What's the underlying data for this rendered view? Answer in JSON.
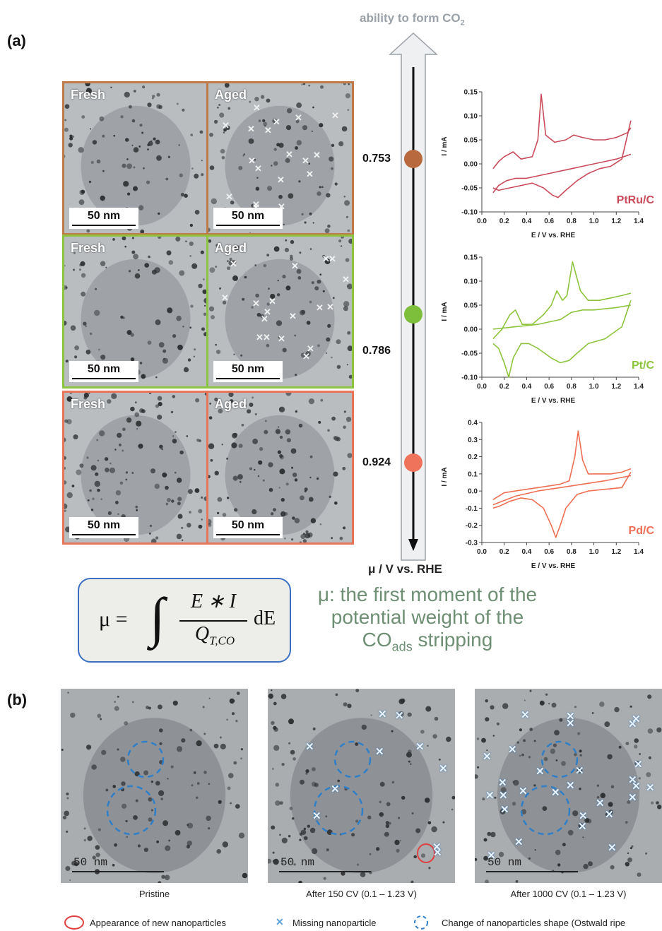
{
  "panel_a": {
    "label": "(a)",
    "rows": [
      {
        "fresh_label": "Fresh",
        "aged_label": "Aged",
        "scale": "50 nm",
        "color": "#c07a4a"
      },
      {
        "fresh_label": "Fresh",
        "aged_label": "Aged",
        "scale": "50 nm",
        "color": "#8dc43f"
      },
      {
        "fresh_label": "Fresh",
        "aged_label": "Aged",
        "scale": "50 nm",
        "color": "#e8745a"
      }
    ],
    "arrow_title": "ability to form CO",
    "arrow_title_sub": "2",
    "arrow_axis_label": "μ / V vs. RHE",
    "mu_values": [
      {
        "value": "0.753",
        "color": "#b8693e"
      },
      {
        "value": "0.786",
        "color": "#7dbe3a"
      },
      {
        "value": "0.924",
        "color": "#ef735a"
      }
    ]
  },
  "chart_data": [
    {
      "type": "line",
      "title": "PtRu/C",
      "xlabel": "E / V vs. RHE",
      "ylabel": "I / mA",
      "xlim": [
        0.0,
        1.4
      ],
      "ylim": [
        -0.1,
        0.15
      ],
      "xticks": [
        "0.0",
        "0.2",
        "0.4",
        "0.6",
        "0.8",
        "1.0",
        "1.2",
        "1.4"
      ],
      "yticks": [
        "-0.10",
        "-0.05",
        "0.00",
        "0.05",
        "0.10",
        "0.15"
      ],
      "color": "#c94b5a",
      "series": [
        {
          "x": [
            0.1,
            0.15,
            0.2,
            0.28,
            0.35,
            0.45,
            0.5,
            0.53,
            0.57,
            0.65,
            0.75,
            0.82,
            0.9,
            1.0,
            1.1,
            1.2,
            1.3,
            1.33
          ],
          "y": [
            -0.01,
            0.005,
            0.015,
            0.025,
            0.01,
            0.015,
            0.05,
            0.145,
            0.06,
            0.045,
            0.05,
            0.06,
            0.055,
            0.05,
            0.05,
            0.055,
            0.065,
            0.075
          ]
        },
        {
          "x": [
            1.33,
            1.25,
            1.15,
            1.05,
            0.95,
            0.85,
            0.75,
            0.68,
            0.63,
            0.55,
            0.45,
            0.35,
            0.25,
            0.15,
            0.1
          ],
          "y": [
            0.09,
            0.01,
            -0.005,
            -0.01,
            -0.02,
            -0.035,
            -0.055,
            -0.07,
            -0.065,
            -0.05,
            -0.04,
            -0.045,
            -0.05,
            -0.055,
            -0.05
          ]
        },
        {
          "x": [
            0.1,
            0.15,
            0.22,
            0.3,
            0.4,
            0.5,
            0.6,
            0.7,
            0.8,
            0.9,
            1.0,
            1.1,
            1.2,
            1.33
          ],
          "y": [
            -0.06,
            -0.045,
            -0.035,
            -0.03,
            -0.03,
            -0.025,
            -0.02,
            -0.015,
            -0.01,
            -0.005,
            0.0,
            0.005,
            0.01,
            0.02
          ]
        }
      ]
    },
    {
      "type": "line",
      "title": "Pt/C",
      "xlabel": "E / V vs. RHE",
      "ylabel": "I / mA",
      "xlim": [
        0.0,
        1.4
      ],
      "ylim": [
        -0.1,
        0.15
      ],
      "xticks": [
        "0.0",
        "0.2",
        "0.4",
        "0.6",
        "0.8",
        "1.0",
        "1.2",
        "1.4"
      ],
      "yticks": [
        "-0.10",
        "-0.05",
        "0.00",
        "0.05",
        "0.10",
        "0.15"
      ],
      "color": "#8cc43c",
      "series": [
        {
          "x": [
            0.1,
            0.18,
            0.25,
            0.3,
            0.36,
            0.45,
            0.55,
            0.62,
            0.67,
            0.72,
            0.76,
            0.81,
            0.88,
            0.95,
            1.05,
            1.15,
            1.25,
            1.33
          ],
          "y": [
            -0.02,
            0.0,
            0.03,
            0.04,
            0.01,
            0.01,
            0.03,
            0.05,
            0.08,
            0.06,
            0.07,
            0.14,
            0.08,
            0.06,
            0.06,
            0.065,
            0.07,
            0.075
          ]
        },
        {
          "x": [
            1.33,
            1.25,
            1.1,
            0.95,
            0.85,
            0.78,
            0.7,
            0.62,
            0.5,
            0.42,
            0.35,
            0.28,
            0.24,
            0.2,
            0.15,
            0.1
          ],
          "y": [
            0.06,
            0.005,
            -0.02,
            -0.03,
            -0.05,
            -0.065,
            -0.07,
            -0.06,
            -0.04,
            -0.03,
            -0.03,
            -0.06,
            -0.1,
            -0.07,
            -0.04,
            -0.03
          ]
        },
        {
          "x": [
            0.1,
            0.3,
            0.5,
            0.7,
            0.8,
            0.9,
            1.0,
            1.2,
            1.33
          ],
          "y": [
            0.0,
            0.005,
            0.01,
            0.02,
            0.035,
            0.04,
            0.04,
            0.045,
            0.05
          ]
        }
      ]
    },
    {
      "type": "line",
      "title": "Pd/C",
      "xlabel": "E / V vs. RHE",
      "ylabel": "I / mA",
      "xlim": [
        0.0,
        1.4
      ],
      "ylim": [
        -0.3,
        0.4
      ],
      "xticks": [
        "0.0",
        "0.2",
        "0.4",
        "0.6",
        "0.8",
        "1.0",
        "1.2",
        "1.4"
      ],
      "yticks": [
        "-0.3",
        "-0.2",
        "-0.1",
        "0.0",
        "0.1",
        "0.2",
        "0.3",
        "0.4"
      ],
      "color": "#ef6f55",
      "series": [
        {
          "x": [
            0.1,
            0.2,
            0.3,
            0.4,
            0.5,
            0.6,
            0.7,
            0.78,
            0.83,
            0.86,
            0.9,
            0.95,
            1.05,
            1.15,
            1.25,
            1.33
          ],
          "y": [
            -0.05,
            -0.01,
            0.0,
            0.01,
            0.02,
            0.03,
            0.04,
            0.06,
            0.2,
            0.35,
            0.18,
            0.1,
            0.1,
            0.1,
            0.11,
            0.13
          ]
        },
        {
          "x": [
            1.33,
            1.25,
            1.1,
            0.95,
            0.85,
            0.75,
            0.7,
            0.66,
            0.62,
            0.55,
            0.45,
            0.35,
            0.25,
            0.15,
            0.1
          ],
          "y": [
            0.11,
            0.02,
            0.01,
            0.0,
            -0.02,
            -0.1,
            -0.2,
            -0.27,
            -0.2,
            -0.1,
            -0.05,
            -0.04,
            -0.06,
            -0.09,
            -0.1
          ]
        },
        {
          "x": [
            0.1,
            0.3,
            0.5,
            0.7,
            0.9,
            1.1,
            1.33
          ],
          "y": [
            -0.08,
            -0.03,
            0.0,
            0.02,
            0.04,
            0.06,
            0.09
          ]
        }
      ]
    }
  ],
  "formula": {
    "mu": "μ =",
    "num": "E ∗ I",
    "den": "Q",
    "den_sub": "T,CO",
    "de": "dE"
  },
  "description": {
    "line1": "μ: the first moment of the",
    "line2": "potential weight of the",
    "line3_main": "CO",
    "line3_sub": "ads",
    "line3_rest": " stripping"
  },
  "panel_b": {
    "label": "(b)",
    "scale": "50  nm",
    "captions": [
      "Pristine",
      "After 150 CV (0.1 – 1.23 V)",
      "After 1000 CV (0.1 – 1.23 V)"
    ],
    "legend": [
      {
        "text": "Appearance of new nanoparticles",
        "icon": "red-circle-icon",
        "color": "#e04040"
      },
      {
        "text": "Missing nanoparticle",
        "icon": "blue-x-icon",
        "color": "#5aa0d8"
      },
      {
        "text": "Change of nanoparticles shape (Ostwald ripe",
        "icon": "blue-dashed-circle-icon",
        "color": "#2f7fc8"
      }
    ],
    "missing_marker": "✕"
  }
}
